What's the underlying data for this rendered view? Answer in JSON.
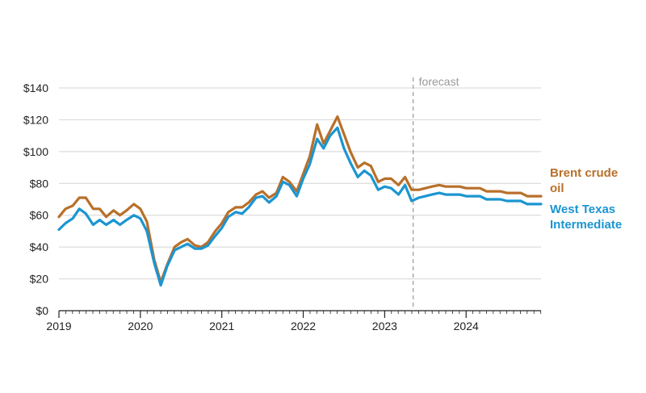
{
  "chart_data": {
    "type": "line",
    "title": "",
    "xlabel": "",
    "ylabel": "",
    "ylim": [
      0,
      140
    ],
    "yticks": [
      0,
      20,
      40,
      60,
      80,
      100,
      120,
      140
    ],
    "ytick_labels": [
      "$0",
      "$20",
      "$40",
      "$60",
      "$80",
      "$100",
      "$120",
      "$140"
    ],
    "xlim": [
      2019.0,
      2024.92
    ],
    "xticks": [
      2019,
      2020,
      2021,
      2022,
      2023,
      2024
    ],
    "xtick_labels": [
      "2019",
      "2020",
      "2021",
      "2022",
      "2023",
      "2024"
    ],
    "grid": "horizontal",
    "forecast": {
      "x": 2023.35,
      "label": "forecast"
    },
    "series": [
      {
        "name": "Brent crude oil",
        "label_lines": [
          "Brent crude",
          "oil"
        ],
        "color": "#b8702a",
        "x": [
          2019.0,
          2019.08,
          2019.17,
          2019.25,
          2019.33,
          2019.42,
          2019.5,
          2019.58,
          2019.67,
          2019.75,
          2019.83,
          2019.92,
          2020.0,
          2020.08,
          2020.17,
          2020.25,
          2020.33,
          2020.42,
          2020.5,
          2020.58,
          2020.67,
          2020.75,
          2020.83,
          2020.92,
          2021.0,
          2021.08,
          2021.17,
          2021.25,
          2021.33,
          2021.42,
          2021.5,
          2021.58,
          2021.67,
          2021.75,
          2021.83,
          2021.92,
          2022.0,
          2022.08,
          2022.17,
          2022.25,
          2022.33,
          2022.42,
          2022.5,
          2022.58,
          2022.67,
          2022.75,
          2022.83,
          2022.92,
          2023.0,
          2023.08,
          2023.17,
          2023.25,
          2023.33,
          2023.42,
          2023.5,
          2023.58,
          2023.67,
          2023.75,
          2023.83,
          2023.92,
          2024.0,
          2024.08,
          2024.17,
          2024.25,
          2024.33,
          2024.42,
          2024.5,
          2024.58,
          2024.67,
          2024.75,
          2024.83,
          2024.92
        ],
        "values": [
          59,
          64,
          66,
          71,
          71,
          64,
          64,
          59,
          63,
          60,
          63,
          67,
          64,
          56,
          32,
          18,
          29,
          40,
          43,
          45,
          41,
          40,
          43,
          50,
          55,
          62,
          65,
          65,
          68,
          73,
          75,
          71,
          74,
          84,
          81,
          75,
          86,
          97,
          117,
          105,
          113,
          122,
          111,
          100,
          90,
          93,
          91,
          81,
          83,
          83,
          79,
          84,
          76,
          76,
          77,
          78,
          79,
          78,
          78,
          78,
          77,
          77,
          77,
          75,
          75,
          75,
          74,
          74,
          74,
          72,
          72,
          72
        ]
      },
      {
        "name": "West Texas Intermediate",
        "label_lines": [
          "West Texas",
          "Intermediate"
        ],
        "color": "#1b95d1",
        "x": [
          2019.0,
          2019.08,
          2019.17,
          2019.25,
          2019.33,
          2019.42,
          2019.5,
          2019.58,
          2019.67,
          2019.75,
          2019.83,
          2019.92,
          2020.0,
          2020.08,
          2020.17,
          2020.25,
          2020.33,
          2020.42,
          2020.5,
          2020.58,
          2020.67,
          2020.75,
          2020.83,
          2020.92,
          2021.0,
          2021.08,
          2021.17,
          2021.25,
          2021.33,
          2021.42,
          2021.5,
          2021.58,
          2021.67,
          2021.75,
          2021.83,
          2021.92,
          2022.0,
          2022.08,
          2022.17,
          2022.25,
          2022.33,
          2022.42,
          2022.5,
          2022.58,
          2022.67,
          2022.75,
          2022.83,
          2022.92,
          2023.0,
          2023.08,
          2023.17,
          2023.25,
          2023.33,
          2023.42,
          2023.5,
          2023.58,
          2023.67,
          2023.75,
          2023.83,
          2023.92,
          2024.0,
          2024.08,
          2024.17,
          2024.25,
          2024.33,
          2024.42,
          2024.5,
          2024.58,
          2024.67,
          2024.75,
          2024.83,
          2024.92
        ],
        "values": [
          51,
          55,
          58,
          64,
          61,
          54,
          57,
          54,
          57,
          54,
          57,
          60,
          58,
          50,
          30,
          16,
          28,
          38,
          40,
          42,
          39,
          39,
          41,
          47,
          52,
          59,
          62,
          61,
          65,
          71,
          72,
          68,
          72,
          81,
          79,
          72,
          83,
          92,
          108,
          102,
          110,
          115,
          102,
          93,
          84,
          88,
          85,
          76,
          78,
          77,
          73,
          79,
          69,
          71,
          72,
          73,
          74,
          73,
          73,
          73,
          72,
          72,
          72,
          70,
          70,
          70,
          69,
          69,
          69,
          67,
          67,
          67
        ]
      }
    ]
  }
}
